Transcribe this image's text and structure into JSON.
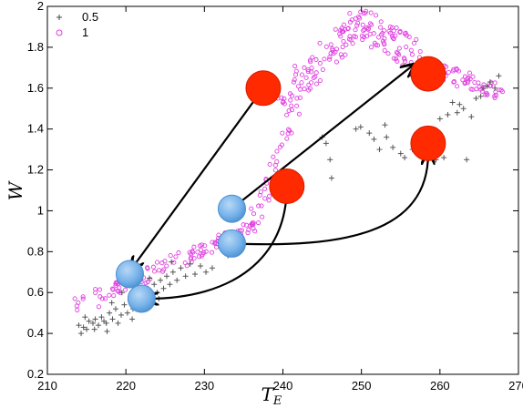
{
  "chart_data": {
    "type": "scatter",
    "xlabel": "T",
    "xlabel_subscript": "E",
    "ylabel": "W",
    "xlim": [
      210,
      270
    ],
    "ylim": [
      0.2,
      2.0
    ],
    "xticks": [
      210,
      220,
      230,
      240,
      250,
      260,
      270
    ],
    "yticks": [
      0.2,
      0.4,
      0.6,
      0.8,
      1.0,
      1.2,
      1.4,
      1.6,
      1.8,
      2.0
    ],
    "xtick_labels": [
      "210",
      "220",
      "230",
      "240",
      "250",
      "260",
      "270"
    ],
    "ytick_labels": [
      "0.2",
      "0.4",
      "0.6",
      "0.8",
      "1",
      "1.2",
      "1.4",
      "1.6",
      "1.8",
      "2"
    ],
    "grid": false,
    "legend_position": "top-left",
    "series": [
      {
        "name": "0.5",
        "marker": "plus",
        "color": "#555555",
        "points": [
          [
            214.0,
            0.44
          ],
          [
            214.3,
            0.4
          ],
          [
            214.6,
            0.43
          ],
          [
            215.0,
            0.42
          ],
          [
            215.3,
            0.46
          ],
          [
            215.8,
            0.45
          ],
          [
            216.1,
            0.47
          ],
          [
            216.5,
            0.44
          ],
          [
            216.9,
            0.48
          ],
          [
            217.2,
            0.46
          ],
          [
            217.6,
            0.41
          ],
          [
            217.9,
            0.5
          ],
          [
            218.3,
            0.47
          ],
          [
            218.7,
            0.52
          ],
          [
            219.0,
            0.45
          ],
          [
            219.4,
            0.49
          ],
          [
            219.8,
            0.54
          ],
          [
            220.2,
            0.5
          ],
          [
            220.6,
            0.56
          ],
          [
            220.9,
            0.52
          ],
          [
            221.3,
            0.58
          ],
          [
            221.7,
            0.54
          ],
          [
            222.1,
            0.6
          ],
          [
            222.5,
            0.56
          ],
          [
            222.8,
            0.62
          ],
          [
            223.2,
            0.58
          ],
          [
            223.6,
            0.64
          ],
          [
            224.0,
            0.6
          ],
          [
            224.4,
            0.66
          ],
          [
            224.8,
            0.62
          ],
          [
            225.2,
            0.68
          ],
          [
            225.6,
            0.64
          ],
          [
            226.0,
            0.7
          ],
          [
            226.5,
            0.66
          ],
          [
            227.0,
            0.72
          ],
          [
            227.6,
            0.68
          ],
          [
            228.2,
            0.74
          ],
          [
            228.8,
            0.69
          ],
          [
            229.5,
            0.73
          ],
          [
            230.2,
            0.7
          ],
          [
            214.8,
            0.48
          ],
          [
            216.0,
            0.42
          ],
          [
            217.5,
            0.45
          ],
          [
            218.2,
            0.55
          ],
          [
            219.5,
            0.6
          ],
          [
            220.8,
            0.47
          ],
          [
            221.6,
            0.63
          ],
          [
            223.0,
            0.67
          ],
          [
            224.2,
            0.57
          ],
          [
            225.8,
            0.75
          ],
          [
            231.0,
            0.72
          ],
          [
            233.0,
            0.78
          ],
          [
            245.0,
            1.36
          ],
          [
            245.5,
            1.33
          ],
          [
            246.0,
            1.25
          ],
          [
            246.2,
            1.16
          ],
          [
            249.3,
            1.4
          ],
          [
            249.9,
            1.41
          ],
          [
            251.0,
            1.38
          ],
          [
            251.6,
            1.35
          ],
          [
            252.3,
            1.3
          ],
          [
            253.0,
            1.42
          ],
          [
            253.2,
            1.36
          ],
          [
            255.0,
            1.28
          ],
          [
            256.5,
            1.3
          ],
          [
            257.5,
            1.27
          ],
          [
            258.0,
            1.27
          ],
          [
            258.9,
            1.26
          ],
          [
            259.5,
            1.25
          ],
          [
            260.5,
            1.26
          ],
          [
            261.0,
            1.47
          ],
          [
            261.6,
            1.53
          ],
          [
            262.2,
            1.48
          ],
          [
            262.5,
            1.52
          ],
          [
            263.0,
            1.5
          ],
          [
            263.4,
            1.25
          ],
          [
            264.0,
            1.46
          ],
          [
            264.6,
            1.55
          ],
          [
            265.2,
            1.56
          ],
          [
            265.5,
            1.6
          ],
          [
            266.0,
            1.61
          ],
          [
            266.4,
            1.63
          ],
          [
            267.0,
            1.6
          ],
          [
            267.5,
            1.66
          ],
          [
            254.0,
            1.31
          ],
          [
            255.5,
            1.26
          ],
          [
            260.0,
            1.45
          ],
          [
            257.0,
            1.38
          ]
        ]
      },
      {
        "name": "1",
        "marker": "circle",
        "color": "#e040e0"
      }
    ],
    "pink_bands": [
      {
        "from": [
          214.0,
          0.53
        ],
        "to": [
          236.0,
          0.92
        ],
        "n": 120,
        "spread": 0.04
      },
      {
        "from": [
          236.0,
          0.92
        ],
        "to": [
          242.0,
          1.55
        ],
        "n": 40,
        "spread": 0.06
      },
      {
        "from": [
          240.0,
          1.55
        ],
        "to": [
          250.0,
          1.92
        ],
        "n": 90,
        "spread": 0.08
      },
      {
        "from": [
          250.0,
          1.92
        ],
        "to": [
          257.0,
          1.76
        ],
        "n": 70,
        "spread": 0.08
      },
      {
        "from": [
          257.0,
          1.72
        ],
        "to": [
          268.0,
          1.58
        ],
        "n": 70,
        "spread": 0.04
      }
    ],
    "overlays": {
      "red_circles": [
        [
          237.5,
          1.6
        ],
        [
          240.5,
          1.12
        ],
        [
          258.5,
          1.67
        ],
        [
          258.5,
          1.33
        ]
      ],
      "blue_circles": [
        [
          233.5,
          1.01
        ],
        [
          233.5,
          0.84
        ],
        [
          220.5,
          0.69
        ],
        [
          222.0,
          0.57
        ]
      ],
      "arrows": [
        {
          "from": [
            237.5,
            1.6
          ],
          "to": [
            220.8,
            0.72
          ],
          "curve": "straight"
        },
        {
          "from": [
            233.5,
            1.01
          ],
          "to": [
            256.5,
            1.71
          ],
          "curve": "straight"
        },
        {
          "from": [
            240.5,
            1.12
          ],
          "to": [
            222.8,
            0.57
          ],
          "curve": "down"
        },
        {
          "from": [
            233.5,
            0.84
          ],
          "to": [
            258.5,
            1.28
          ],
          "curve": "up"
        }
      ]
    }
  },
  "legend": [
    {
      "label": "0.5",
      "marker": "plus",
      "color": "#555555"
    },
    {
      "label": "1",
      "marker": "circle",
      "color": "#e040e0"
    }
  ],
  "colors": {
    "red": "#ff2a00",
    "blue": "#78b3ea",
    "arrow": "#000000"
  }
}
